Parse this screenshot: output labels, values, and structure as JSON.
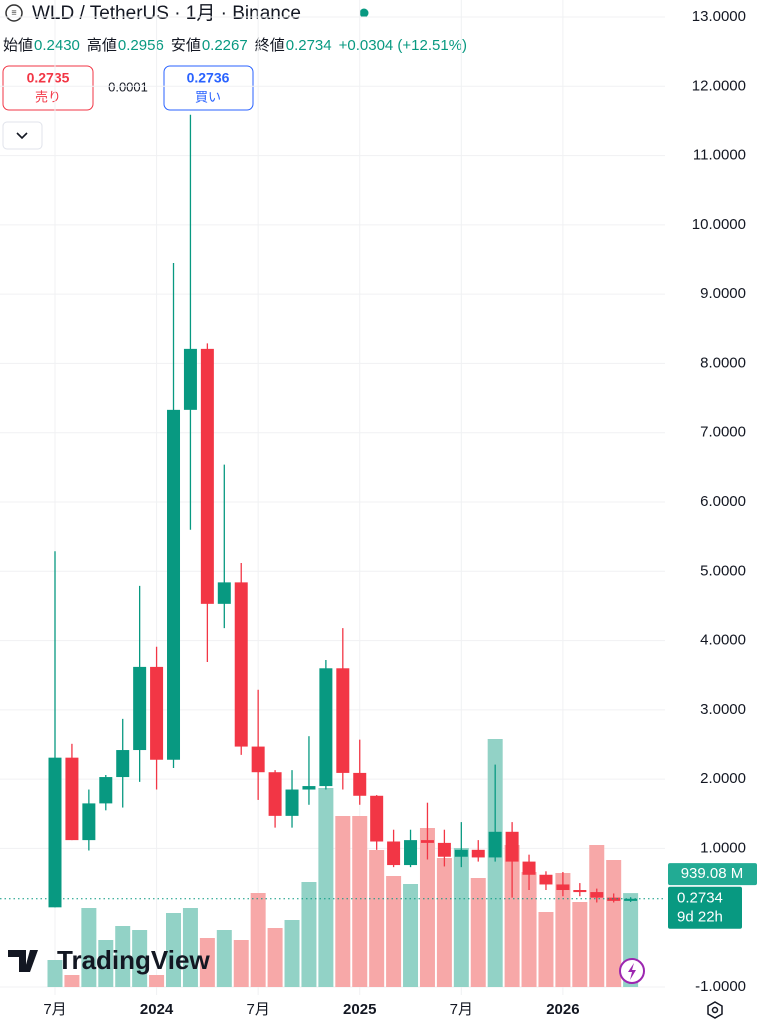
{
  "header": {
    "title": "WLD / TetherUS · 1月 · Binance",
    "ohlc": [
      {
        "label": "始値",
        "value": "0.2430"
      },
      {
        "label": "高値",
        "value": "0.2956"
      },
      {
        "label": "安値",
        "value": "0.2267"
      },
      {
        "label": "終値",
        "value": "0.2734"
      }
    ],
    "change": "+0.0304 (+12.51%)",
    "sell_price": "0.2735",
    "sell_label": "売り",
    "spread": "0.0001",
    "buy_price": "0.2736",
    "buy_label": "買い",
    "logo": "TradingView"
  },
  "chart_data": {
    "type": "candlestick",
    "categories": [
      "7月",
      null,
      null,
      null,
      null,
      null,
      "2024",
      null,
      null,
      null,
      null,
      null,
      "7月",
      null,
      null,
      null,
      null,
      null,
      "2025",
      null,
      null,
      null,
      null,
      null,
      "7月",
      null,
      null,
      null,
      null,
      null,
      "2026",
      null,
      null,
      null,
      null
    ],
    "open": [
      0.15,
      2.31,
      1.12,
      1.65,
      2.03,
      2.42,
      3.62,
      2.28,
      7.33,
      8.21,
      4.53,
      4.84,
      2.47,
      2.1,
      1.47,
      1.85,
      1.9,
      3.6,
      2.09,
      1.76,
      1.1,
      0.76,
      1.12,
      1.08,
      0.88,
      0.98,
      0.87,
      1.24,
      0.81,
      0.62,
      0.48,
      0.4,
      0.37,
      0.29,
      0.243
    ],
    "high": [
      5.29,
      2.51,
      1.85,
      2.06,
      2.87,
      4.79,
      3.91,
      9.45,
      11.59,
      8.29,
      6.54,
      5.12,
      3.29,
      2.13,
      2.13,
      2.62,
      3.72,
      4.18,
      2.57,
      1.77,
      1.27,
      1.27,
      1.66,
      1.27,
      1.38,
      1.12,
      2.21,
      1.38,
      0.91,
      0.67,
      0.66,
      0.5,
      0.42,
      0.35,
      0.2956
    ],
    "low": [
      0.15,
      1.12,
      0.97,
      1.55,
      1.59,
      1.96,
      1.85,
      2.16,
      5.6,
      3.69,
      4.18,
      2.35,
      1.7,
      1.3,
      1.3,
      1.63,
      1.85,
      1.85,
      1.63,
      0.98,
      0.73,
      0.73,
      0.84,
      0.74,
      0.73,
      0.81,
      0.81,
      0.29,
      0.4,
      0.4,
      0.31,
      0.31,
      0.22,
      0.22,
      0.2267
    ],
    "close": [
      2.31,
      1.12,
      1.65,
      2.03,
      2.42,
      3.62,
      2.28,
      7.33,
      8.21,
      4.53,
      4.84,
      2.47,
      2.1,
      1.47,
      1.85,
      1.9,
      3.6,
      2.09,
      1.76,
      1.1,
      0.76,
      1.12,
      1.08,
      0.88,
      0.98,
      0.87,
      1.24,
      0.81,
      0.62,
      0.48,
      0.4,
      0.37,
      0.29,
      0.243,
      0.2734
    ],
    "volume": [
      270,
      120,
      790,
      470,
      610,
      570,
      120,
      740,
      790,
      490,
      570,
      470,
      940,
      590,
      670,
      1050,
      1990,
      1710,
      1710,
      1370,
      1110,
      1030,
      1590,
      1290,
      1390,
      1090,
      2480,
      1420,
      1150,
      750,
      1140,
      850,
      1420,
      1270,
      939.08
    ],
    "volume_label": "939.08 M",
    "volume_ylim": [
      0,
      3000
    ],
    "last_price_label": "0.2734",
    "countdown": "9d 22h",
    "up_color": "#089981",
    "down_color": "#f23645",
    "up_volume_color": "#92d2c6",
    "down_volume_color": "#f7a8a8",
    "ylim": [
      -1,
      13
    ],
    "yticks": [
      {
        "value": 13,
        "label": "13.0000"
      },
      {
        "value": 12,
        "label": "12.0000"
      },
      {
        "value": 11,
        "label": "11.0000"
      },
      {
        "value": 10,
        "label": "10.0000"
      },
      {
        "value": 9,
        "label": "9.0000"
      },
      {
        "value": 8,
        "label": "8.0000"
      },
      {
        "value": 7,
        "label": "7.0000"
      },
      {
        "value": 6,
        "label": "6.0000"
      },
      {
        "value": 5,
        "label": "5.0000"
      },
      {
        "value": 4,
        "label": "4.0000"
      },
      {
        "value": 3,
        "label": "3.0000"
      },
      {
        "value": 2,
        "label": "2.0000"
      },
      {
        "value": 1,
        "label": "1.0000"
      },
      {
        "value": -1,
        "label": "-1.0000"
      }
    ],
    "grid": true
  }
}
